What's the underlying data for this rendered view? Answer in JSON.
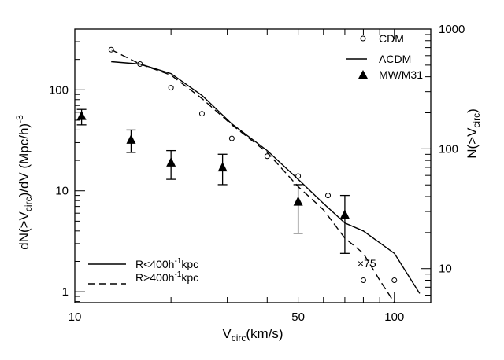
{
  "chart_data": {
    "type": "line",
    "title": "",
    "xlabel": "V",
    "xlabel_sub": "circ",
    "xlabel_units": "(km/s)",
    "ylabel_parts": [
      "dN(>V",
      "circ",
      ")/dV (Mpc/h)",
      "-3"
    ],
    "y2label_parts": [
      "N(>V",
      "circ",
      ")"
    ],
    "xscale": "log",
    "yscale": "log",
    "xlim": [
      10,
      130
    ],
    "ylim": [
      0.78,
      400
    ],
    "y2lim": [
      5.2,
      1000
    ],
    "x_ticks": [
      {
        "v": 10,
        "label": "10"
      },
      {
        "v": 50,
        "label": "50"
      },
      {
        "v": 100,
        "label": "100"
      }
    ],
    "y_ticks": [
      {
        "v": 1,
        "label": "1"
      },
      {
        "v": 10,
        "label": "10"
      },
      {
        "v": 100,
        "label": "100"
      }
    ],
    "y2_ticks": [
      {
        "v": 10,
        "label": "10"
      },
      {
        "v": 100,
        "label": "100"
      },
      {
        "v": 1000,
        "label": "1000"
      }
    ],
    "series": [
      {
        "name": "CDM",
        "marker": "open-circle",
        "x": [
          13,
          16,
          20,
          25,
          31,
          40,
          50,
          62,
          80,
          100
        ],
        "y": [
          250,
          180,
          105,
          58,
          33,
          22,
          14,
          9,
          1.3,
          1.3
        ]
      },
      {
        "name": "ΛCDM",
        "style": "solid",
        "x": [
          13,
          16,
          20,
          25,
          31,
          40,
          50,
          60,
          70,
          80,
          100,
          120
        ],
        "y": [
          190,
          180,
          145,
          88,
          46,
          25,
          13,
          7.5,
          4.8,
          4.0,
          2.4,
          0.96
        ]
      },
      {
        "name": "MW/M31",
        "marker": "filled-triangle",
        "x": [
          10.5,
          15,
          20,
          29,
          50,
          70
        ],
        "y": [
          55,
          32,
          19,
          17,
          7.8,
          5.8
        ],
        "yerr_low": [
          45,
          24,
          13,
          11.5,
          3.8,
          2.4
        ],
        "yerr_high": [
          64,
          40,
          25,
          23,
          11.5,
          9
        ]
      },
      {
        "name": "R>400h-1kpc",
        "style": "dashed",
        "x": [
          13,
          16,
          20,
          25,
          31,
          40,
          50,
          60,
          70,
          80,
          90,
          100
        ],
        "y": [
          250,
          180,
          140,
          82,
          45,
          24,
          11,
          6.5,
          3.4,
          2.4,
          1.3,
          0.78
        ]
      }
    ],
    "legend_top_right": [
      {
        "label": "CDM",
        "marker": "open-circle"
      },
      {
        "label": "ΛCDM",
        "marker": "solid"
      },
      {
        "label": "MW/M31",
        "marker": "filled-triangle"
      }
    ],
    "legend_bottom_left": [
      {
        "label_parts": [
          "R<400h",
          "-1",
          "kpc"
        ],
        "style": "solid"
      },
      {
        "label_parts": [
          "R>400h",
          "-1",
          "kpc"
        ],
        "style": "dashed"
      }
    ],
    "annotations": [
      {
        "text": "×75",
        "x": 82,
        "y": 1.75
      }
    ]
  }
}
